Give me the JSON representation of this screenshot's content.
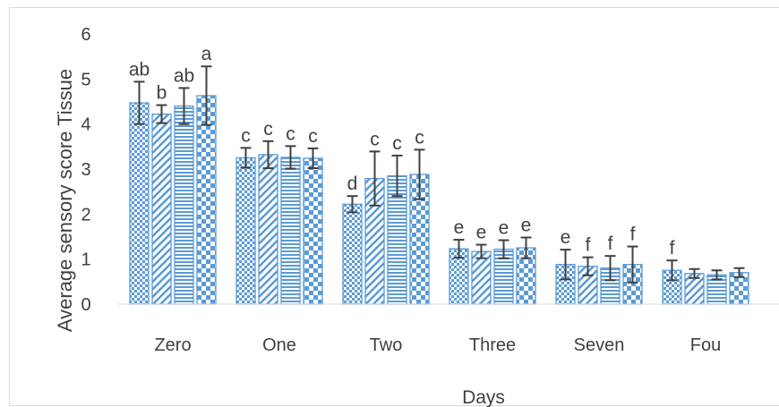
{
  "chart_data": {
    "type": "bar",
    "xlabel": "Days",
    "ylabel": "Average sensory score  Tissue",
    "categories": [
      "Zero",
      "One",
      "Two",
      "Three",
      "Seven",
      "Fourteen"
    ],
    "category_labels_visible": [
      "Zero",
      "One",
      "Two",
      "Three",
      "Seven",
      "Fou"
    ],
    "ylim": [
      0,
      6
    ],
    "yticks": [
      "0",
      "1",
      "2",
      "3",
      "4",
      "5",
      "6"
    ],
    "grid": false,
    "series": [
      {
        "pattern": "small-checker",
        "values": [
          4.47,
          3.25,
          2.22,
          1.23,
          0.88,
          0.75
        ],
        "errors": [
          0.47,
          0.22,
          0.18,
          0.2,
          0.33,
          0.22
        ],
        "letters": [
          "ab",
          "c",
          "d",
          "e",
          "e",
          "f"
        ]
      },
      {
        "pattern": "diagonal-stripes",
        "values": [
          4.22,
          3.32,
          2.79,
          1.17,
          0.84,
          0.68
        ],
        "errors": [
          0.2,
          0.3,
          0.6,
          0.15,
          0.2,
          0.1
        ],
        "letters": [
          "b",
          "c",
          "c",
          "e",
          "f",
          ""
        ]
      },
      {
        "pattern": "horizontal-stripes",
        "values": [
          4.4,
          3.26,
          2.85,
          1.22,
          0.8,
          0.65
        ],
        "errors": [
          0.4,
          0.25,
          0.45,
          0.2,
          0.27,
          0.1
        ],
        "letters": [
          "ab",
          "c",
          "c",
          "e",
          "f",
          ""
        ]
      },
      {
        "pattern": "large-checker",
        "values": [
          4.63,
          3.24,
          2.88,
          1.25,
          0.88,
          0.7
        ],
        "errors": [
          0.65,
          0.22,
          0.55,
          0.23,
          0.4,
          0.1
        ],
        "letters": [
          "a",
          "c",
          "c",
          "e",
          "f",
          ""
        ]
      }
    ],
    "colors": {
      "bar_outline": "#5b9bd5",
      "bar_fill": "#5b9bd5",
      "error_bar": "#404040",
      "axis": "#d9d9d9",
      "text": "#404040"
    }
  }
}
